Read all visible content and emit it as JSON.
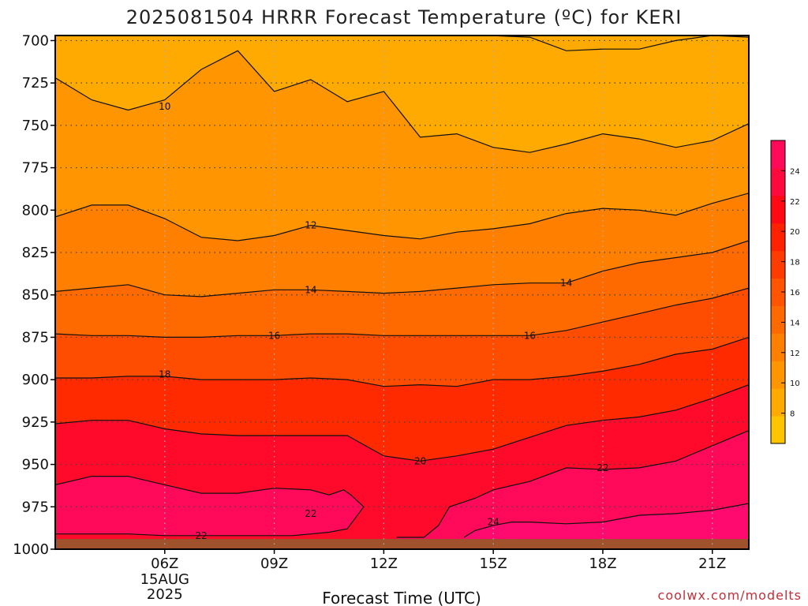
{
  "chart_data": {
    "type": "heatmap",
    "title": "2025081504 HRRR Forecast Temperature (ºC) for KERI",
    "xlabel": "Forecast Time (UTC)",
    "ylabel": "",
    "credit": "coolwx.com/modelts",
    "x_range_hours": [
      3,
      22
    ],
    "y_range_hpa": [
      697,
      1000
    ],
    "y_ticks": [
      700,
      725,
      750,
      775,
      800,
      825,
      850,
      875,
      900,
      925,
      950,
      975,
      1000
    ],
    "x_ticks": [
      {
        "hour": 6,
        "label": "06Z",
        "sub": [
          "15AUG",
          "2025"
        ]
      },
      {
        "hour": 9,
        "label": "09Z",
        "sub": []
      },
      {
        "hour": 12,
        "label": "12Z",
        "sub": []
      },
      {
        "hour": 15,
        "label": "15Z",
        "sub": []
      },
      {
        "hour": 18,
        "label": "18Z",
        "sub": []
      },
      {
        "hour": 21,
        "label": "21Z",
        "sub": []
      }
    ],
    "grid": true,
    "colorbar": {
      "ticks": [
        8,
        10,
        12,
        14,
        16,
        18,
        20,
        22,
        24
      ],
      "range": [
        6,
        26
      ],
      "colors": [
        "#ffc400",
        "#ffaa00",
        "#ff9500",
        "#ff8000",
        "#ff6a00",
        "#ff5500",
        "#ff3c00",
        "#ff2200",
        "#ff0a14",
        "#ff0a3c",
        "#ff0a5a"
      ]
    },
    "bands": [
      {
        "value": 8,
        "color": "#ffaa00"
      },
      {
        "value": 10,
        "color": "#ff9500"
      },
      {
        "value": 12,
        "color": "#ff8000"
      },
      {
        "value": 14,
        "color": "#ff6a00"
      },
      {
        "value": 16,
        "color": "#ff4d00"
      },
      {
        "value": 18,
        "color": "#ff2a00"
      },
      {
        "value": 20,
        "color": "#ff0a2a"
      },
      {
        "value": 22,
        "color": "#ff0a5a"
      },
      {
        "value": 24,
        "color": "#ff0a6e"
      }
    ],
    "ground": {
      "color": "#a0522d",
      "pressure_hpa": 994
    },
    "contours": [
      {
        "value": 8,
        "x": [
          14.9,
          16,
          17,
          18,
          19,
          20,
          21,
          22
        ],
        "y": [
          697,
          698,
          706,
          705,
          705,
          700,
          697,
          698
        ]
      },
      {
        "value": 10,
        "x": [
          3,
          4,
          5,
          6,
          7,
          8,
          9,
          10,
          11,
          12,
          13,
          14,
          15,
          16,
          17,
          18,
          19,
          20,
          21,
          22
        ],
        "y": [
          722,
          735,
          741,
          735,
          717,
          706,
          730,
          723,
          736,
          730,
          757,
          755,
          763,
          766,
          761,
          755,
          758,
          763,
          759,
          749
        ]
      },
      {
        "value": 12,
        "x": [
          3,
          4,
          5,
          6,
          7,
          8,
          9,
          10,
          11,
          12,
          13,
          14,
          15,
          16,
          17,
          18,
          19,
          20,
          21,
          22
        ],
        "y": [
          804,
          797,
          797,
          805,
          816,
          818,
          815,
          809,
          812,
          815,
          817,
          813,
          811,
          808,
          802,
          799,
          800,
          803,
          796,
          790
        ]
      },
      {
        "value": 14,
        "x": [
          3,
          4,
          5,
          6,
          7,
          8,
          9,
          10,
          11,
          12,
          13,
          14,
          15,
          16,
          17,
          18,
          19,
          20,
          21,
          22
        ],
        "y": [
          848,
          846,
          844,
          850,
          851,
          849,
          847,
          847,
          848,
          849,
          848,
          846,
          844,
          843,
          843,
          836,
          831,
          828,
          825,
          818
        ]
      },
      {
        "value": 16,
        "x": [
          3,
          4,
          5,
          6,
          7,
          8,
          9,
          10,
          11,
          12,
          13,
          14,
          15,
          16,
          17,
          18,
          19,
          20,
          21,
          22
        ],
        "y": [
          873,
          874,
          874,
          875,
          875,
          874,
          874,
          873,
          873,
          874,
          874,
          874,
          874,
          874,
          871,
          866,
          861,
          856,
          852,
          846
        ]
      },
      {
        "value": 18,
        "x": [
          3,
          4,
          5,
          6,
          7,
          8,
          9,
          10,
          11,
          12,
          13,
          14,
          15,
          16,
          17,
          18,
          19,
          20,
          21,
          22
        ],
        "y": [
          899,
          899,
          898,
          898,
          900,
          900,
          900,
          899,
          900,
          904,
          903,
          904,
          900,
          900,
          898,
          895,
          891,
          885,
          882,
          875
        ]
      },
      {
        "value": 20,
        "x": [
          3,
          4,
          5,
          6,
          7,
          8,
          9,
          10,
          11,
          12,
          13,
          14,
          15,
          16,
          17,
          18,
          19,
          20,
          21,
          22
        ],
        "y": [
          926,
          924,
          924,
          929,
          932,
          933,
          933,
          933,
          933,
          945,
          948,
          945,
          941,
          934,
          927,
          924,
          922,
          918,
          911,
          903
        ]
      },
      {
        "value": 22,
        "x": [
          3,
          4,
          5,
          6,
          7,
          8,
          9,
          10,
          10.5,
          10.9,
          11.1,
          11.45,
          11,
          10.5,
          10,
          9.5,
          9,
          8,
          7,
          6,
          5,
          4,
          3
        ],
        "y": [
          962,
          957,
          957,
          962,
          967,
          967,
          964,
          965,
          968,
          965,
          968,
          975,
          988,
          990,
          991,
          992,
          992,
          992,
          992,
          992,
          991,
          991,
          991
        ]
      },
      {
        "value": 22,
        "x": [
          12.35,
          12.9,
          13.1,
          13.5,
          13.8,
          14.5,
          15,
          16,
          17,
          18,
          19,
          20,
          21,
          22
        ],
        "y": [
          993,
          993,
          993,
          986,
          975,
          970,
          965,
          960,
          952,
          953,
          952,
          948,
          939,
          930
        ]
      },
      {
        "value": 24,
        "x": [
          14.2,
          14.5,
          15,
          15.5,
          16,
          17,
          18,
          19,
          20,
          21,
          22
        ],
        "y": [
          993,
          989,
          986,
          984,
          984,
          985,
          984,
          980,
          979,
          977,
          973
        ]
      }
    ],
    "contour_labels": [
      {
        "text": "10",
        "x": 6.0,
        "y": 739
      },
      {
        "text": "12",
        "x": 10.0,
        "y": 809
      },
      {
        "text": "14",
        "x": 10.0,
        "y": 847
      },
      {
        "text": "14",
        "x": 17.0,
        "y": 843
      },
      {
        "text": "16",
        "x": 9.0,
        "y": 874
      },
      {
        "text": "16",
        "x": 16.0,
        "y": 874
      },
      {
        "text": "18",
        "x": 6.0,
        "y": 897
      },
      {
        "text": "20",
        "x": 13.0,
        "y": 948
      },
      {
        "text": "22",
        "x": 10.0,
        "y": 979
      },
      {
        "text": "22",
        "x": 18.0,
        "y": 952
      },
      {
        "text": "22",
        "x": 7.0,
        "y": 992
      },
      {
        "text": "24",
        "x": 15.0,
        "y": 984
      }
    ]
  }
}
